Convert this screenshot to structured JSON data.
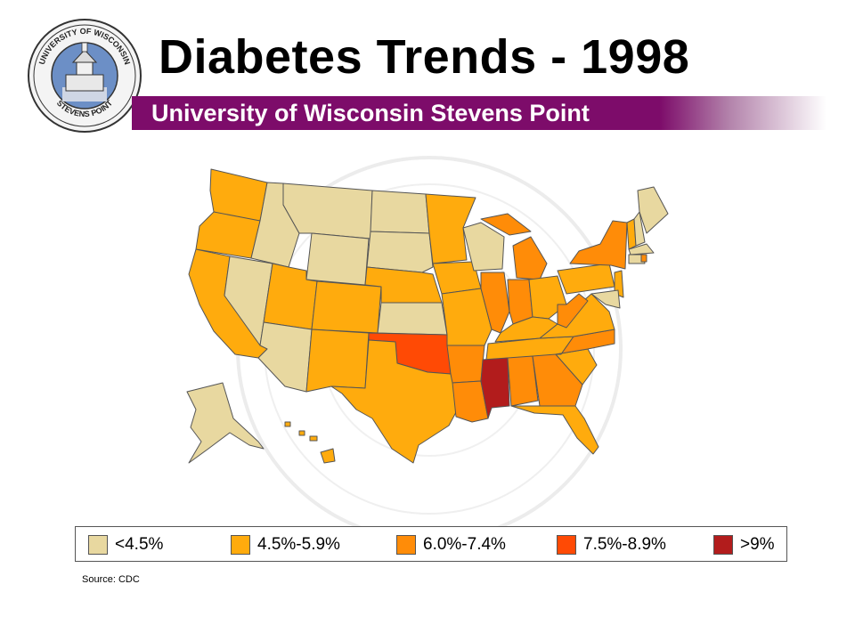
{
  "header": {
    "title": "Diabetes Trends - 1998",
    "subtitle": "University of Wisconsin Stevens Point",
    "seal_text_top": "UNIVERSITY OF WISCONSIN",
    "seal_text_bottom": "STEVENS POINT"
  },
  "colors": {
    "lt_4_5": "#e8d8a0",
    "4_5_5_9": "#ffab0d",
    "6_0_7_4": "#ff8c08",
    "7_5_8_9": "#ff4a05",
    "gt_9": "#b21c1c",
    "bar": "#7d0c6a"
  },
  "legend": [
    {
      "label": "<4.5%",
      "color": "#e8d8a0"
    },
    {
      "label": "4.5%-5.9%",
      "color": "#ffab0d"
    },
    {
      "label": "6.0%-7.4%",
      "color": "#ff8c08"
    },
    {
      "label": "7.5%-8.9%",
      "color": "#ff4a05"
    },
    {
      "label": ">9%",
      "color": "#b21c1c"
    }
  ],
  "source": "Source: CDC"
}
